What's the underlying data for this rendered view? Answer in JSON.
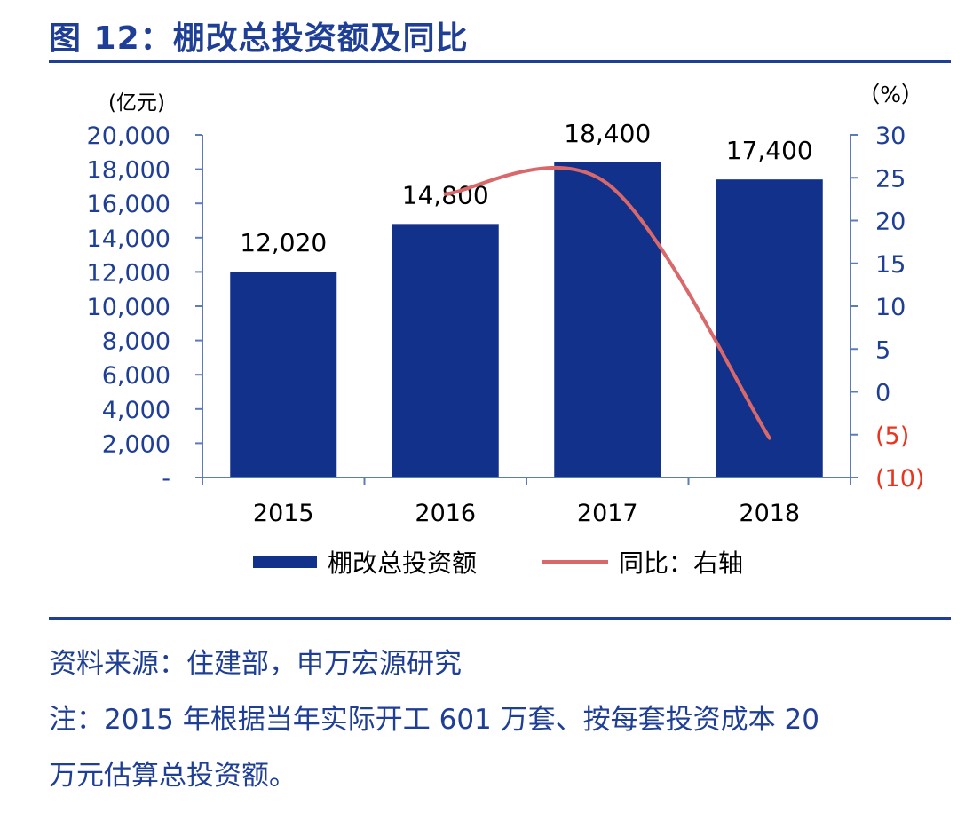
{
  "figure": {
    "title": "图 12：棚改总投资额及同比",
    "source": "资料来源：住建部，申万宏源研究",
    "note_line1": "注：2015 年根据当年实际开工 601 万套、按每套投资成本 20",
    "note_line2": "万元估算总投资额。"
  },
  "colors": {
    "bar": "#12318a",
    "line": "#d9686a",
    "axis": "#5b7cb8",
    "tick_text": "#1f3f96",
    "negative_text": "#e8351f",
    "title": "#1f3f96"
  },
  "chart_data": {
    "type": "bar",
    "categories": [
      "2015",
      "2016",
      "2017",
      "2018"
    ],
    "left_axis": {
      "unit_label": "(亿元)",
      "min": 0,
      "max": 20000,
      "ticks": [
        "-",
        "2,000",
        "4,000",
        "6,000",
        "8,000",
        "10,000",
        "12,000",
        "14,000",
        "16,000",
        "18,000",
        "20,000"
      ]
    },
    "right_axis": {
      "unit_label": "（%）",
      "min": -10,
      "max": 30,
      "ticks": [
        "(10)",
        "(5)",
        "0",
        "5",
        "10",
        "15",
        "20",
        "25",
        "30"
      ]
    },
    "series": [
      {
        "name": "棚改总投资额",
        "type": "bar",
        "axis": "left",
        "values": [
          12020,
          14800,
          18400,
          17400
        ],
        "data_labels": [
          "12,020",
          "14,800",
          "18,400",
          "17,400"
        ]
      },
      {
        "name": "同比：右轴",
        "type": "line",
        "axis": "right",
        "smooth": true,
        "x": [
          "2016",
          "2017",
          "2018"
        ],
        "values": [
          23.1,
          24.3,
          -5.4
        ]
      }
    ],
    "legend_position": "bottom",
    "grid": false
  }
}
